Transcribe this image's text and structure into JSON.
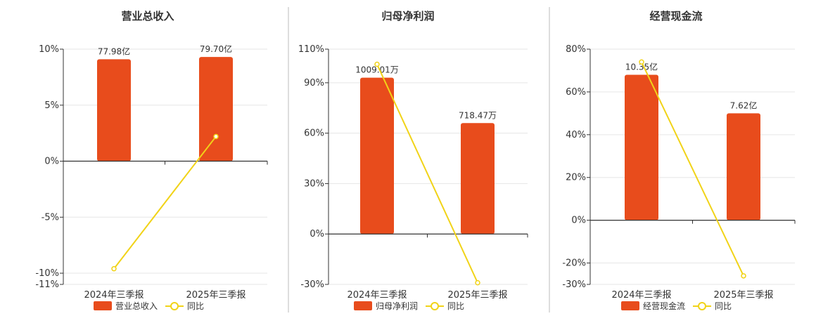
{
  "colors": {
    "bar": "#E84C1C",
    "line": "#F1D318",
    "axis": "#333333",
    "grid": "#E6E6E6",
    "divider": "#BBBBBB",
    "text": "#333333"
  },
  "chart_data": [
    {
      "type": "bar",
      "title": "营业总收入",
      "categories": [
        "2024年三季报",
        "2025年三季报"
      ],
      "series": [
        {
          "name": "营业总收入",
          "type": "bar",
          "values": [
            9.1,
            9.3
          ],
          "labels": [
            "77.98亿",
            "79.70亿"
          ]
        },
        {
          "name": "同比",
          "type": "line",
          "values": [
            -9.6,
            2.2
          ]
        }
      ],
      "ylim": [
        -11,
        10
      ],
      "yticks": [
        10,
        5,
        0,
        -5,
        -10,
        -11
      ],
      "ytick_labels": [
        "10%",
        "5%",
        "0%",
        "-5%",
        "-10%",
        "-11%"
      ],
      "grid": true,
      "legend": "bottom"
    },
    {
      "type": "bar",
      "title": "归母净利润",
      "categories": [
        "2024年三季报",
        "2025年三季报"
      ],
      "series": [
        {
          "name": "归母净利润",
          "type": "bar",
          "values": [
            93,
            66
          ],
          "labels": [
            "1009.01万",
            "718.47万"
          ]
        },
        {
          "name": "同比",
          "type": "line",
          "values": [
            101,
            -29
          ]
        }
      ],
      "ylim": [
        -30,
        110
      ],
      "yticks": [
        110,
        90,
        60,
        30,
        0,
        -30
      ],
      "ytick_labels": [
        "110%",
        "90%",
        "60%",
        "30%",
        "0%",
        "-30%"
      ],
      "grid": true,
      "legend": "bottom"
    },
    {
      "type": "bar",
      "title": "经营现金流",
      "categories": [
        "2024年三季报",
        "2025年三季报"
      ],
      "series": [
        {
          "name": "经营现金流",
          "type": "bar",
          "values": [
            68,
            50
          ],
          "labels": [
            "10.35亿",
            "7.62亿"
          ]
        },
        {
          "name": "同比",
          "type": "line",
          "values": [
            74,
            -26
          ]
        }
      ],
      "ylim": [
        -30,
        80
      ],
      "yticks": [
        80,
        60,
        40,
        20,
        0,
        -20,
        -30
      ],
      "ytick_labels": [
        "80%",
        "60%",
        "40%",
        "20%",
        "0%",
        "-20%",
        "-30%"
      ],
      "grid": true,
      "legend": "bottom"
    }
  ]
}
